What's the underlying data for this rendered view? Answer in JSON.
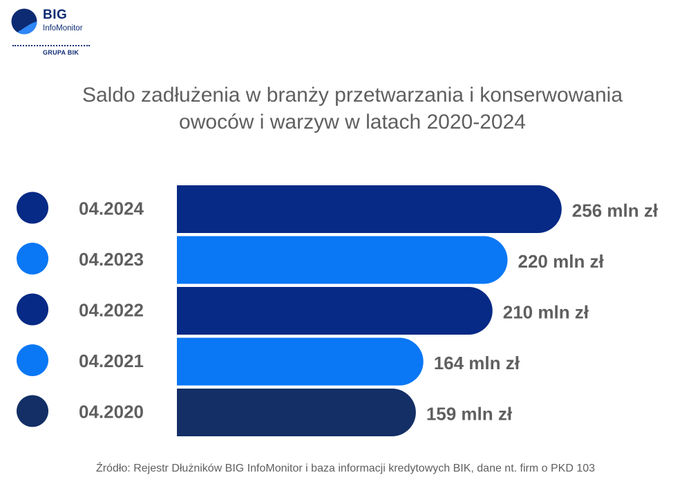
{
  "logo": {
    "name": "BIG",
    "subname": "InfoMonitor",
    "group": "GRUPA BIK"
  },
  "title": {
    "line1": "Saldo zadłużenia w branży przetwarzania i konserwowania",
    "line2": "owoców i warzyw w latach 2020-2024"
  },
  "source": "Źródło: Rejestr Dłużników BIG InfoMonitor i baza informacji kredytowych BIK, dane nt. firm o PKD 103",
  "colors": {
    "dark": "#062a85",
    "light": "#0a77f5",
    "darkest": "#132f66",
    "text": "#5f5f5f"
  },
  "chart_data": {
    "type": "bar",
    "orientation": "horizontal",
    "title": "Saldo zadłużenia w branży przetwarzania i konserwowania owoców i warzyw w latach 2020-2024",
    "categories": [
      "04.2024",
      "04.2023",
      "04.2022",
      "04.2021",
      "04.2020"
    ],
    "values": [
      256,
      220,
      210,
      164,
      159
    ],
    "value_labels": [
      "256 mln zł",
      "220 mln zł",
      "210 mln zł",
      "164 mln zł",
      "159 mln zł"
    ],
    "bar_colors": [
      "#062a85",
      "#0a77f5",
      "#062a85",
      "#0a77f5",
      "#132f66"
    ],
    "unit": "mln zł",
    "grid": false,
    "legend": "none"
  }
}
